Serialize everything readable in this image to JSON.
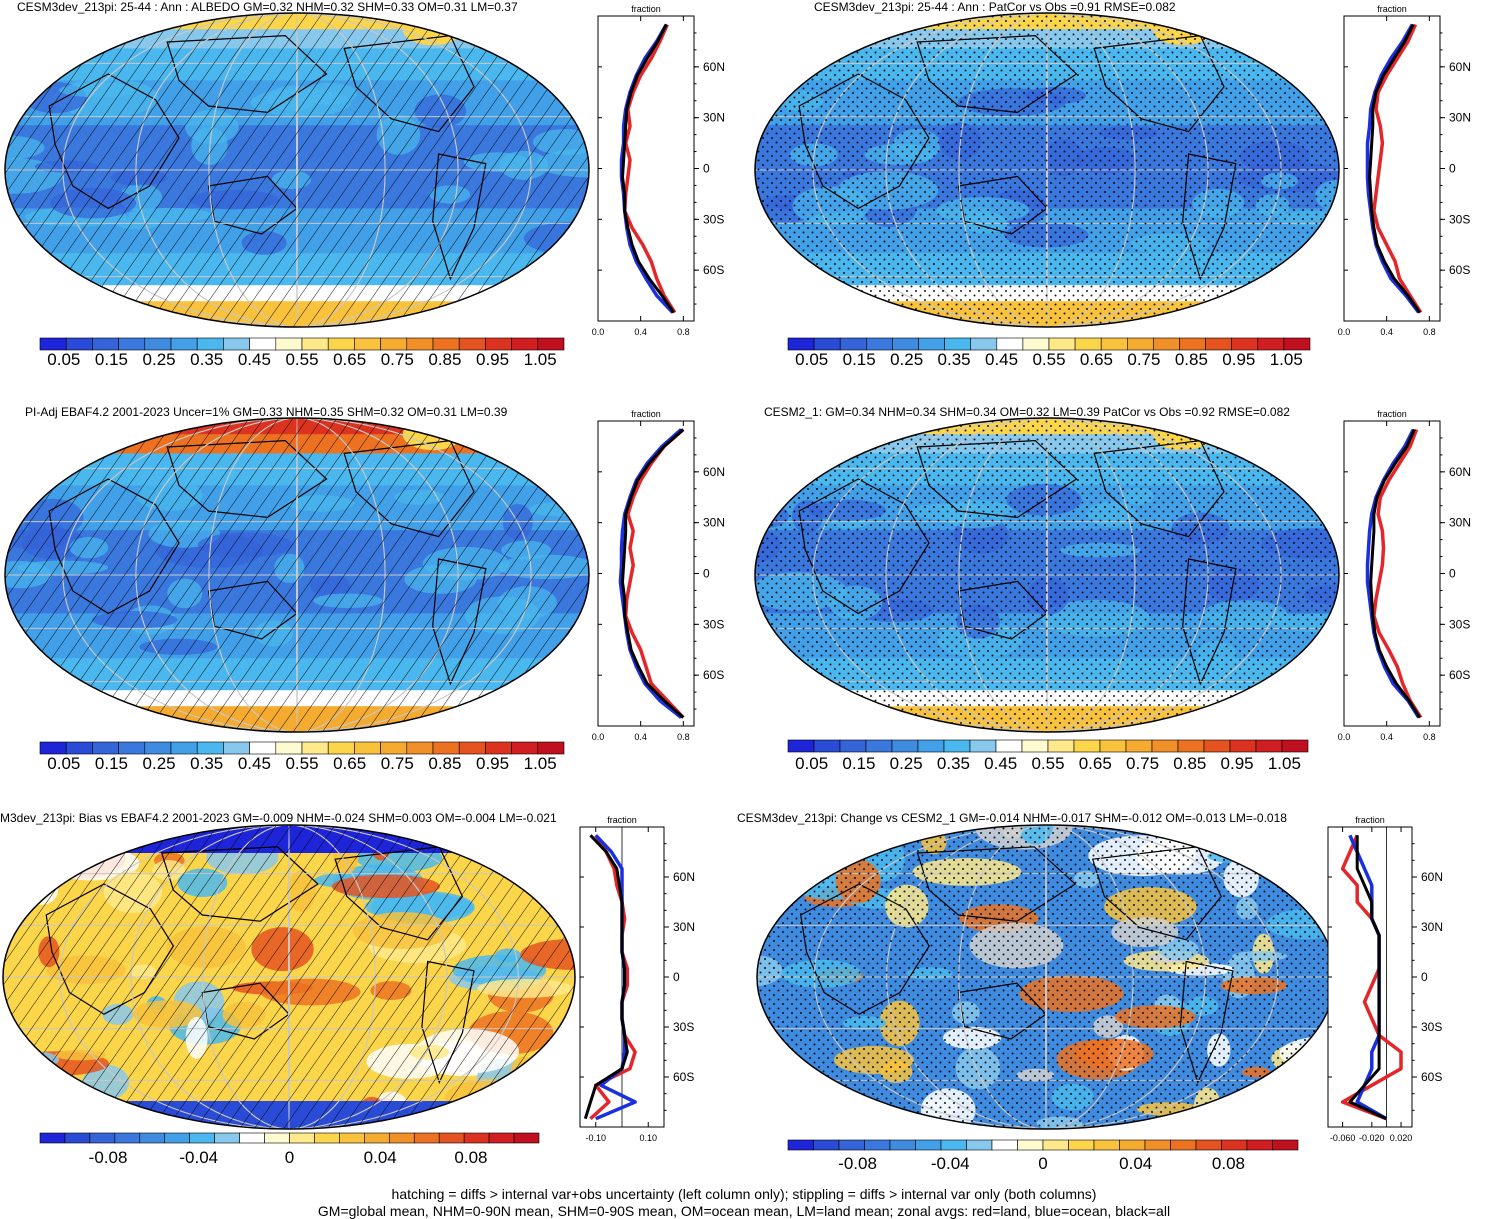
{
  "colors": {
    "land": "#e4262b",
    "ocean": "#1a2fe0",
    "all": "#000000",
    "scale": [
      "#1e24d8",
      "#2a4bd6",
      "#3563d8",
      "#3a78de",
      "#3f8be0",
      "#41a0e8",
      "#4ab8ee",
      "#88c8ec",
      "#ffffff",
      "#fffbd0",
      "#ffe98a",
      "#fbd54a",
      "#f8c23c",
      "#f5aa30",
      "#f19029",
      "#ec7222",
      "#e55320",
      "#dc3320",
      "#d01e22",
      "#c00f1f"
    ]
  },
  "footer": {
    "line1": "hatching = diffs > internal var+obs uncertainty (left column only); stippling = diffs > internal var only (both columns)",
    "line2": "GM=global mean, NHM=0-90N mean, SHM=0-90S mean, OM=ocean mean, LM=land mean; zonal avgs: red=land, blue=ocean, black=all"
  },
  "panels": [
    {
      "title": "CESM3dev_213pi: 25-44 : Ann : ALBEDO GM=0.32 NHM=0.32 SHM=0.33 OM=0.31 LM=0.37",
      "pattern": "hatch",
      "zonal_title": "fraction",
      "lat_ticks": [
        "60N",
        "30N",
        "0",
        "30S",
        "60S"
      ],
      "x_ticks": [
        "0.0",
        "0.4",
        "0.8"
      ],
      "colorbar_labels": [
        "0.05",
        "0.15",
        "0.25",
        "0.35",
        "0.45",
        "0.55",
        "0.65",
        "0.75",
        "0.85",
        "0.95",
        "1.05"
      ]
    },
    {
      "title": "CESM3dev_213pi: 25-44 : Ann : PatCor vs Obs =0.91 RMSE=0.082",
      "pattern": "stipple",
      "zonal_title": "fraction",
      "lat_ticks": [
        "60N",
        "30N",
        "0",
        "30S",
        "60S"
      ],
      "x_ticks": [
        "0.0",
        "0.4",
        "0.8"
      ],
      "colorbar_labels": [
        "0.05",
        "0.15",
        "0.25",
        "0.35",
        "0.45",
        "0.55",
        "0.65",
        "0.75",
        "0.85",
        "0.95",
        "1.05"
      ]
    },
    {
      "title": "PI-Adj EBAF4.2 2001-2023 Uncer=1% GM=0.33 NHM=0.35 SHM=0.32 OM=0.31 LM=0.39",
      "pattern": "hatch",
      "zonal_title": "fraction",
      "lat_ticks": [
        "60N",
        "30N",
        "0",
        "30S",
        "60S"
      ],
      "x_ticks": [
        "0.0",
        "0.4",
        "0.8"
      ],
      "colorbar_labels": [
        "0.05",
        "0.15",
        "0.25",
        "0.35",
        "0.45",
        "0.55",
        "0.65",
        "0.75",
        "0.85",
        "0.95",
        "1.05"
      ]
    },
    {
      "title": "CESM2_1: GM=0.34 NHM=0.34 SHM=0.34 OM=0.32 LM=0.39 PatCor vs Obs =0.92 RMSE=0.082",
      "pattern": "stipple",
      "zonal_title": "fraction",
      "lat_ticks": [
        "60N",
        "30N",
        "0",
        "30S",
        "60S"
      ],
      "x_ticks": [
        "0.0",
        "0.4",
        "0.8"
      ],
      "colorbar_labels": [
        "0.05",
        "0.15",
        "0.25",
        "0.35",
        "0.45",
        "0.55",
        "0.65",
        "0.75",
        "0.85",
        "0.95",
        "1.05"
      ]
    },
    {
      "title": "M3dev_213pi: Bias vs EBAF4.2 2001-2023 GM=-0.009 NHM=-0.024 SHM=0.003 OM=-0.004 LM=-0.021",
      "pattern": "hatch",
      "zonal_title": "fraction",
      "lat_ticks": [
        "60N",
        "30N",
        "0",
        "30S",
        "60S"
      ],
      "x_ticks": [
        "-0.10",
        "0.10"
      ],
      "colorbar_labels": [
        "-0.08",
        "-0.04",
        "0",
        "0.04",
        "0.08"
      ]
    },
    {
      "title": "CESM3dev_213pi: Change vs CESM2_1 GM=-0.014 NHM=-0.017 SHM=-0.012 OM=-0.013 LM=-0.018",
      "pattern": "stipple",
      "zonal_title": "fraction",
      "lat_ticks": [
        "60N",
        "30N",
        "0",
        "30S",
        "60S"
      ],
      "x_ticks": [
        "-0.060",
        "-0.020",
        "0.020"
      ],
      "colorbar_labels": [
        "-0.08",
        "-0.04",
        "0",
        "0.04",
        "0.08"
      ]
    }
  ],
  "chart_data": [
    {
      "type": "line",
      "title": "CESM3dev_213pi: 25-44 : Ann : ALBEDO GM=0.32 NHM=0.32 SHM=0.33 OM=0.31 LM=0.37",
      "xlabel": "fraction",
      "xlim": [
        0.0,
        0.9
      ],
      "ylim": [
        -90,
        90
      ],
      "y": [
        -85,
        -75,
        -65,
        -55,
        -45,
        -35,
        -25,
        -15,
        -5,
        5,
        15,
        25,
        35,
        45,
        55,
        65,
        75,
        85
      ],
      "series": [
        {
          "name": "land",
          "values": [
            0.72,
            0.62,
            0.55,
            0.5,
            0.42,
            0.32,
            0.25,
            0.26,
            0.28,
            0.3,
            0.26,
            0.3,
            0.28,
            0.33,
            0.4,
            0.5,
            0.58,
            0.65
          ]
        },
        {
          "name": "ocean",
          "values": [
            0.7,
            0.55,
            0.45,
            0.36,
            0.3,
            0.27,
            0.25,
            0.24,
            0.22,
            0.22,
            0.24,
            0.24,
            0.26,
            0.3,
            0.36,
            0.44,
            0.55,
            0.64
          ]
        },
        {
          "name": "all",
          "values": [
            0.71,
            0.6,
            0.48,
            0.38,
            0.32,
            0.28,
            0.25,
            0.25,
            0.23,
            0.24,
            0.25,
            0.26,
            0.27,
            0.31,
            0.37,
            0.46,
            0.56,
            0.64
          ]
        }
      ]
    },
    {
      "type": "line",
      "title": "CESM3dev_213pi: 25-44 : Ann : PatCor vs Obs =0.91 RMSE=0.082",
      "xlabel": "fraction",
      "xlim": [
        0.0,
        0.9
      ],
      "ylim": [
        -90,
        90
      ],
      "y": [
        -85,
        -75,
        -65,
        -55,
        -45,
        -35,
        -25,
        -15,
        -5,
        5,
        15,
        25,
        35,
        45,
        55,
        65,
        75,
        85
      ],
      "series": [
        {
          "name": "land",
          "values": [
            0.72,
            0.62,
            0.52,
            0.48,
            0.4,
            0.32,
            0.28,
            0.3,
            0.32,
            0.34,
            0.36,
            0.34,
            0.3,
            0.32,
            0.4,
            0.5,
            0.6,
            0.67
          ]
        },
        {
          "name": "ocean",
          "values": [
            0.7,
            0.58,
            0.44,
            0.36,
            0.3,
            0.27,
            0.25,
            0.23,
            0.22,
            0.22,
            0.22,
            0.24,
            0.25,
            0.29,
            0.35,
            0.44,
            0.55,
            0.64
          ]
        },
        {
          "name": "all",
          "values": [
            0.71,
            0.6,
            0.47,
            0.38,
            0.31,
            0.28,
            0.26,
            0.25,
            0.24,
            0.25,
            0.26,
            0.27,
            0.27,
            0.3,
            0.37,
            0.47,
            0.57,
            0.65
          ]
        }
      ]
    },
    {
      "type": "line",
      "title": "PI-Adj EBAF4.2 2001-2023 Uncer=1% GM=0.33 NHM=0.35 SHM=0.32 OM=0.31 LM=0.39",
      "xlabel": "fraction",
      "xlim": [
        0.0,
        0.9
      ],
      "ylim": [
        -90,
        90
      ],
      "y": [
        -85,
        -75,
        -65,
        -55,
        -45,
        -35,
        -25,
        -15,
        -5,
        5,
        15,
        25,
        35,
        45,
        55,
        65,
        75,
        85
      ],
      "series": [
        {
          "name": "land",
          "values": [
            0.8,
            0.65,
            0.5,
            0.45,
            0.4,
            0.32,
            0.26,
            0.27,
            0.3,
            0.33,
            0.3,
            0.33,
            0.28,
            0.33,
            0.4,
            0.5,
            0.62,
            0.8
          ]
        },
        {
          "name": "ocean",
          "values": [
            0.78,
            0.58,
            0.44,
            0.36,
            0.3,
            0.27,
            0.25,
            0.23,
            0.21,
            0.22,
            0.22,
            0.23,
            0.25,
            0.3,
            0.36,
            0.46,
            0.6,
            0.78
          ]
        },
        {
          "name": "all",
          "values": [
            0.8,
            0.62,
            0.46,
            0.38,
            0.31,
            0.28,
            0.25,
            0.25,
            0.23,
            0.24,
            0.25,
            0.26,
            0.26,
            0.31,
            0.37,
            0.48,
            0.62,
            0.8
          ]
        }
      ]
    },
    {
      "type": "line",
      "title": "CESM2_1: GM=0.34 NHM=0.34 SHM=0.34 OM=0.32 LM=0.39 PatCor vs Obs =0.92 RMSE=0.082",
      "xlabel": "fraction",
      "xlim": [
        0.0,
        0.9
      ],
      "ylim": [
        -90,
        90
      ],
      "y": [
        -85,
        -75,
        -65,
        -55,
        -45,
        -35,
        -25,
        -15,
        -5,
        5,
        15,
        25,
        35,
        45,
        55,
        65,
        75,
        85
      ],
      "series": [
        {
          "name": "land",
          "values": [
            0.72,
            0.62,
            0.55,
            0.5,
            0.42,
            0.33,
            0.28,
            0.3,
            0.33,
            0.36,
            0.37,
            0.36,
            0.32,
            0.34,
            0.42,
            0.52,
            0.62,
            0.68
          ]
        },
        {
          "name": "ocean",
          "values": [
            0.7,
            0.6,
            0.46,
            0.38,
            0.32,
            0.28,
            0.26,
            0.24,
            0.22,
            0.22,
            0.23,
            0.24,
            0.26,
            0.3,
            0.37,
            0.46,
            0.57,
            0.65
          ]
        },
        {
          "name": "all",
          "values": [
            0.71,
            0.61,
            0.49,
            0.4,
            0.33,
            0.29,
            0.27,
            0.26,
            0.25,
            0.26,
            0.27,
            0.28,
            0.28,
            0.31,
            0.38,
            0.48,
            0.59,
            0.66
          ]
        }
      ]
    },
    {
      "type": "line",
      "title": "M3dev_213pi: Bias vs EBAF4.2 2001-2023 GM=-0.009 NHM=-0.024 SHM=0.003 OM=-0.004 LM=-0.021",
      "xlabel": "fraction",
      "xlim": [
        -0.16,
        0.16
      ],
      "ylim": [
        -90,
        90
      ],
      "y": [
        -85,
        -75,
        -65,
        -55,
        -45,
        -35,
        -25,
        -15,
        -5,
        5,
        15,
        25,
        35,
        45,
        55,
        65,
        75,
        85
      ],
      "series": [
        {
          "name": "land",
          "values": [
            -0.12,
            -0.05,
            -0.1,
            0.03,
            0.05,
            0.01,
            0.0,
            0.0,
            0.02,
            0.02,
            0.0,
            0.0,
            0.01,
            0.0,
            -0.02,
            -0.03,
            -0.06,
            -0.1
          ]
        },
        {
          "name": "ocean",
          "values": [
            -0.1,
            0.05,
            -0.08,
            0.0,
            0.01,
            0.01,
            0.0,
            0.0,
            0.01,
            0.01,
            0.0,
            0.0,
            0.0,
            0.0,
            0.0,
            0.0,
            -0.04,
            -0.1
          ]
        },
        {
          "name": "all",
          "values": [
            -0.14,
            -0.12,
            -0.1,
            0.0,
            0.02,
            0.01,
            0.0,
            0.0,
            0.01,
            0.01,
            0.0,
            0.0,
            0.0,
            0.0,
            -0.01,
            -0.02,
            -0.06,
            -0.12
          ]
        }
      ]
    },
    {
      "type": "line",
      "title": "CESM3dev_213pi: Change vs CESM2_1 GM=-0.014 NHM=-0.017 SHM=-0.012 OM=-0.013 LM=-0.018",
      "xlabel": "fraction",
      "xlim": [
        -0.08,
        0.035
      ],
      "ylim": [
        -90,
        90
      ],
      "y": [
        -85,
        -75,
        -65,
        -55,
        -45,
        -35,
        -25,
        -15,
        -5,
        5,
        15,
        25,
        35,
        45,
        55,
        65,
        75,
        85
      ],
      "series": [
        {
          "name": "land",
          "values": [
            0.0,
            -0.06,
            -0.02,
            0.02,
            0.02,
            -0.01,
            -0.02,
            -0.03,
            -0.02,
            -0.01,
            -0.01,
            -0.01,
            -0.02,
            -0.04,
            -0.04,
            -0.06,
            -0.05,
            -0.04
          ]
        },
        {
          "name": "ocean",
          "values": [
            0.0,
            -0.04,
            -0.03,
            -0.02,
            -0.02,
            -0.01,
            -0.01,
            -0.01,
            -0.01,
            -0.01,
            -0.01,
            -0.01,
            -0.02,
            -0.02,
            -0.02,
            -0.03,
            -0.04,
            -0.05
          ]
        },
        {
          "name": "all",
          "values": [
            0.0,
            -0.05,
            -0.03,
            -0.01,
            -0.01,
            -0.01,
            -0.01,
            -0.01,
            -0.01,
            -0.01,
            -0.01,
            -0.01,
            -0.02,
            -0.02,
            -0.03,
            -0.04,
            -0.04,
            -0.04
          ]
        }
      ]
    }
  ]
}
